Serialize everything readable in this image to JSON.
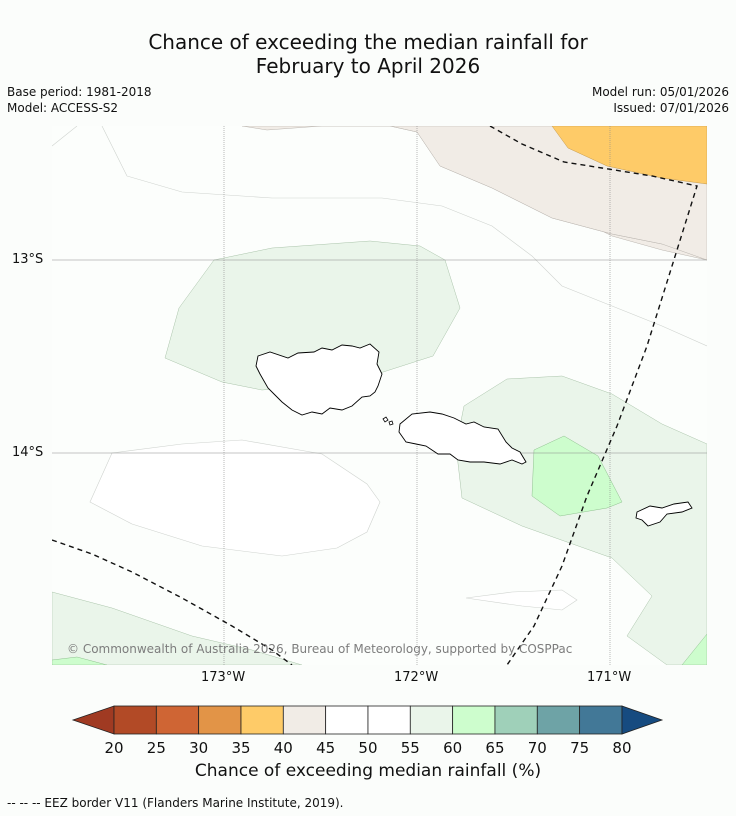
{
  "title_line1": "Chance of exceeding the median rainfall for",
  "title_line2": "February to April 2026",
  "base_period": "Base period: 1981-2018",
  "model": "Model: ACCESS-S2",
  "model_run": "Model run: 05/01/2026",
  "issued": "Issued: 07/01/2026",
  "axes": {
    "lat_labels": [
      "13°S",
      "14°S"
    ],
    "lon_labels": [
      "173°W",
      "172°W",
      "171°W"
    ]
  },
  "copyright": "© Commonwealth of Australia 2026, Bureau of Meteorology, supported by COSPPac",
  "legend": {
    "title": "Chance of exceeding median rainfall (%)",
    "ticks": [
      "20",
      "25",
      "30",
      "35",
      "40",
      "45",
      "50",
      "55",
      "60",
      "65",
      "70",
      "75",
      "80"
    ],
    "colors": {
      "below_20": "#a03a22",
      "20_25": "#b24a26",
      "25_30": "#cf6534",
      "30_35": "#e29447",
      "35_40": "#fecb68",
      "40_45": "#f1ece6",
      "45_50": "#ffffff",
      "50_55": "#ffffff",
      "55_60": "#eaf5ea",
      "60_65": "#cdfdcd",
      "65_70": "#9fd0b9",
      "70_75": "#6ea3a6",
      "75_80": "#427897",
      "above_80": "#164b80"
    }
  },
  "footnote": "-- -- -- EEZ border V11 (Flanders Marine Institute, 2019)."
}
